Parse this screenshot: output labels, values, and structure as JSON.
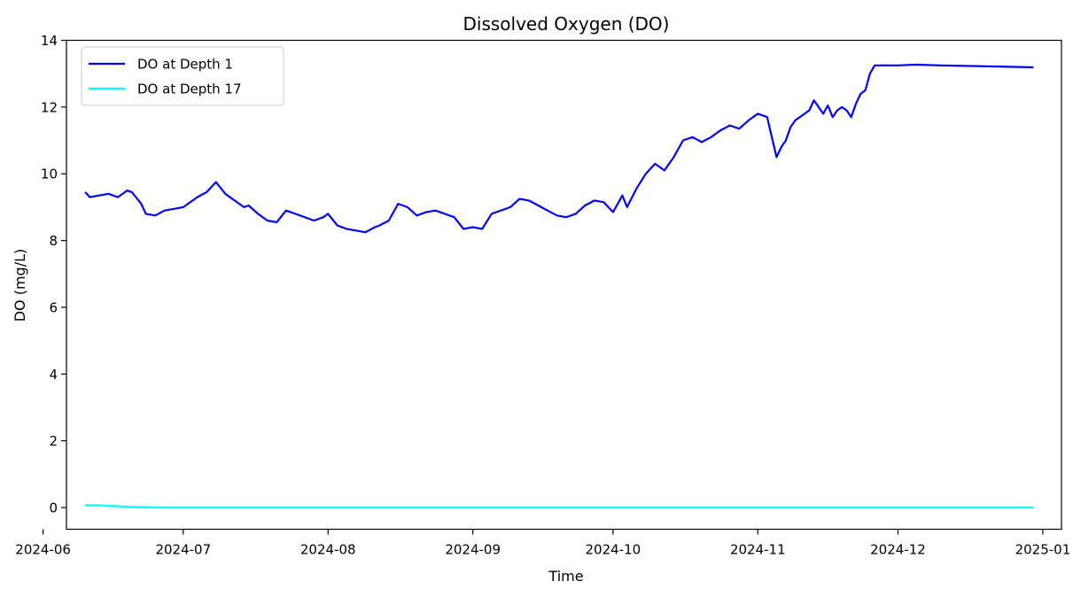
{
  "chart_data": {
    "type": "line",
    "title": "Dissolved Oxygen (DO)",
    "xlabel": "Time",
    "ylabel": "DO (mg/L)",
    "x_type": "date",
    "xlim": [
      "2024-06-06",
      "2025-01-05"
    ],
    "ylim": [
      -0.65,
      14
    ],
    "x_ticks": [
      "2024-06",
      "2024-07",
      "2024-08",
      "2024-09",
      "2024-10",
      "2024-11",
      "2024-12",
      "2025-01"
    ],
    "y_ticks": [
      0,
      2,
      4,
      6,
      8,
      10,
      12,
      14
    ],
    "grid": false,
    "legend": "upper left",
    "series": [
      {
        "name": "DO at Depth 1",
        "color": "#0000ff",
        "x": [
          "2024-06-10",
          "2024-06-11",
          "2024-06-13",
          "2024-06-15",
          "2024-06-17",
          "2024-06-19",
          "2024-06-20",
          "2024-06-22",
          "2024-06-23",
          "2024-06-25",
          "2024-06-27",
          "2024-06-29",
          "2024-07-01",
          "2024-07-02",
          "2024-07-04",
          "2024-07-06",
          "2024-07-08",
          "2024-07-10",
          "2024-07-12",
          "2024-07-14",
          "2024-07-15",
          "2024-07-17",
          "2024-07-19",
          "2024-07-21",
          "2024-07-23",
          "2024-07-25",
          "2024-07-27",
          "2024-07-29",
          "2024-07-31",
          "2024-08-01",
          "2024-08-03",
          "2024-08-05",
          "2024-08-07",
          "2024-08-09",
          "2024-08-11",
          "2024-08-12",
          "2024-08-14",
          "2024-08-16",
          "2024-08-18",
          "2024-08-20",
          "2024-08-22",
          "2024-08-24",
          "2024-08-26",
          "2024-08-28",
          "2024-08-30",
          "2024-09-01",
          "2024-09-03",
          "2024-09-05",
          "2024-09-07",
          "2024-09-09",
          "2024-09-11",
          "2024-09-13",
          "2024-09-15",
          "2024-09-17",
          "2024-09-19",
          "2024-09-21",
          "2024-09-23",
          "2024-09-25",
          "2024-09-27",
          "2024-09-29",
          "2024-10-01",
          "2024-10-03",
          "2024-10-04",
          "2024-10-06",
          "2024-10-08",
          "2024-10-10",
          "2024-10-12",
          "2024-10-14",
          "2024-10-16",
          "2024-10-18",
          "2024-10-20",
          "2024-10-22",
          "2024-10-24",
          "2024-10-26",
          "2024-10-28",
          "2024-10-30",
          "2024-11-01",
          "2024-11-03",
          "2024-11-05",
          "2024-11-06",
          "2024-11-07",
          "2024-11-08",
          "2024-11-09",
          "2024-11-10",
          "2024-11-12",
          "2024-11-13",
          "2024-11-15",
          "2024-11-16",
          "2024-11-17",
          "2024-11-18",
          "2024-11-19",
          "2024-11-20",
          "2024-11-21",
          "2024-11-22",
          "2024-11-23",
          "2024-11-24",
          "2024-11-25",
          "2024-11-26",
          "2024-11-27",
          "2024-11-28",
          "2024-12-01",
          "2024-12-05",
          "2024-12-10",
          "2024-12-20",
          "2024-12-30"
        ],
        "y": [
          9.45,
          9.3,
          9.35,
          9.4,
          9.3,
          9.5,
          9.45,
          9.1,
          8.8,
          8.75,
          8.9,
          8.95,
          9.0,
          9.1,
          9.3,
          9.45,
          9.75,
          9.4,
          9.2,
          9.0,
          9.05,
          8.8,
          8.6,
          8.55,
          8.9,
          8.8,
          8.7,
          8.6,
          8.7,
          8.8,
          8.45,
          8.35,
          8.3,
          8.25,
          8.4,
          8.45,
          8.6,
          9.1,
          9.0,
          8.75,
          8.85,
          8.9,
          8.8,
          8.7,
          8.35,
          8.4,
          8.35,
          8.8,
          8.9,
          9.0,
          9.25,
          9.2,
          9.05,
          8.9,
          8.75,
          8.7,
          8.8,
          9.05,
          9.2,
          9.15,
          8.85,
          9.35,
          9.0,
          9.55,
          10.0,
          10.3,
          10.1,
          10.5,
          11.0,
          11.1,
          10.95,
          11.1,
          11.3,
          11.45,
          11.35,
          11.6,
          11.8,
          11.7,
          10.5,
          10.8,
          11.0,
          11.4,
          11.6,
          11.7,
          11.9,
          12.2,
          11.8,
          12.05,
          11.7,
          11.9,
          12.0,
          11.9,
          11.7,
          12.1,
          12.4,
          12.5,
          13.0,
          13.25,
          13.25,
          13.25,
          13.25,
          13.27,
          13.25,
          13.22,
          13.19
        ]
      },
      {
        "name": "DO at Depth 17",
        "color": "#00ffff",
        "x": [
          "2024-06-10",
          "2024-06-14",
          "2024-06-18",
          "2024-06-22",
          "2024-06-27",
          "2024-07-05",
          "2024-12-30"
        ],
        "y": [
          0.07,
          0.06,
          0.03,
          0.01,
          0.0,
          0.0,
          0.0
        ]
      }
    ]
  }
}
